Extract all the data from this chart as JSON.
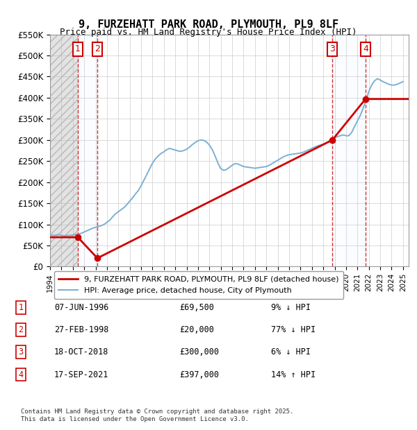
{
  "title": "9, FURZEHATT PARK ROAD, PLYMOUTH, PL9 8LF",
  "subtitle": "Price paid vs. HM Land Registry's House Price Index (HPI)",
  "xlabel": "",
  "ylabel": "",
  "ylim": [
    0,
    550000
  ],
  "xlim_start": 1994.0,
  "xlim_end": 2025.5,
  "yticks": [
    0,
    50000,
    100000,
    150000,
    200000,
    250000,
    300000,
    350000,
    400000,
    450000,
    500000,
    550000
  ],
  "ytick_labels": [
    "£0",
    "£50K",
    "£100K",
    "£150K",
    "£200K",
    "£250K",
    "£300K",
    "£350K",
    "£400K",
    "£450K",
    "£500K",
    "£550K"
  ],
  "transactions": [
    {
      "num": 1,
      "date": "07-JUN-1996",
      "year": 1996.44,
      "price": 69500,
      "pct": "9% ↓ HPI"
    },
    {
      "num": 2,
      "date": "27-FEB-1998",
      "year": 1998.16,
      "price": 20000,
      "pct": "77% ↓ HPI"
    },
    {
      "num": 3,
      "date": "18-OCT-2018",
      "year": 2018.8,
      "price": 300000,
      "pct": "6% ↓ HPI"
    },
    {
      "num": 4,
      "date": "17-SEP-2021",
      "year": 2021.71,
      "price": 397000,
      "pct": "14% ↑ HPI"
    }
  ],
  "legend_entries": [
    {
      "label": "9, FURZEHATT PARK ROAD, PLYMOUTH, PL9 8LF (detached house)",
      "color": "#cc0000",
      "lw": 2
    },
    {
      "label": "HPI: Average price, detached house, City of Plymouth",
      "color": "#6699cc",
      "lw": 1.5
    }
  ],
  "table_rows": [
    {
      "num": 1,
      "date": "07-JUN-1996",
      "price": "£69,500",
      "pct": "9% ↓ HPI"
    },
    {
      "num": 2,
      "date": "27-FEB-1998",
      "price": "£20,000",
      "pct": "77% ↓ HPI"
    },
    {
      "num": 3,
      "date": "18-OCT-2018",
      "price": "£300,000",
      "pct": "6% ↓ HPI"
    },
    {
      "num": 4,
      "date": "17-SEP-2021",
      "price": "£397,000",
      "pct": "14% ↑ HPI"
    }
  ],
  "footer": "Contains HM Land Registry data © Crown copyright and database right 2025.\nThis data is licensed under the Open Government Licence v3.0.",
  "hpi_data": {
    "years": [
      1994.0,
      1994.25,
      1994.5,
      1994.75,
      1995.0,
      1995.25,
      1995.5,
      1995.75,
      1996.0,
      1996.25,
      1996.5,
      1996.75,
      1997.0,
      1997.25,
      1997.5,
      1997.75,
      1998.0,
      1998.25,
      1998.5,
      1998.75,
      1999.0,
      1999.25,
      1999.5,
      1999.75,
      2000.0,
      2000.25,
      2000.5,
      2000.75,
      2001.0,
      2001.25,
      2001.5,
      2001.75,
      2002.0,
      2002.25,
      2002.5,
      2002.75,
      2003.0,
      2003.25,
      2003.5,
      2003.75,
      2004.0,
      2004.25,
      2004.5,
      2004.75,
      2005.0,
      2005.25,
      2005.5,
      2005.75,
      2006.0,
      2006.25,
      2006.5,
      2006.75,
      2007.0,
      2007.25,
      2007.5,
      2007.75,
      2008.0,
      2008.25,
      2008.5,
      2008.75,
      2009.0,
      2009.25,
      2009.5,
      2009.75,
      2010.0,
      2010.25,
      2010.5,
      2010.75,
      2011.0,
      2011.25,
      2011.5,
      2011.75,
      2012.0,
      2012.25,
      2012.5,
      2012.75,
      2013.0,
      2013.25,
      2013.5,
      2013.75,
      2014.0,
      2014.25,
      2014.5,
      2014.75,
      2015.0,
      2015.25,
      2015.5,
      2015.75,
      2016.0,
      2016.25,
      2016.5,
      2016.75,
      2017.0,
      2017.25,
      2017.5,
      2017.75,
      2018.0,
      2018.25,
      2018.5,
      2018.75,
      2019.0,
      2019.25,
      2019.5,
      2019.75,
      2020.0,
      2020.25,
      2020.5,
      2020.75,
      2021.0,
      2021.25,
      2021.5,
      2021.75,
      2022.0,
      2022.25,
      2022.5,
      2022.75,
      2023.0,
      2023.25,
      2023.5,
      2023.75,
      2024.0,
      2024.25,
      2024.5,
      2024.75,
      2025.0
    ],
    "values": [
      75000,
      74000,
      74500,
      76000,
      74000,
      73000,
      73500,
      74000,
      75000,
      76000,
      77000,
      79000,
      82000,
      85000,
      88000,
      91000,
      93000,
      95000,
      97000,
      100000,
      105000,
      110000,
      118000,
      125000,
      130000,
      135000,
      140000,
      147000,
      155000,
      163000,
      172000,
      180000,
      192000,
      205000,
      218000,
      232000,
      245000,
      255000,
      262000,
      268000,
      272000,
      277000,
      280000,
      278000,
      276000,
      274000,
      273000,
      275000,
      278000,
      283000,
      289000,
      294000,
      298000,
      300000,
      299000,
      295000,
      288000,
      277000,
      262000,
      245000,
      232000,
      228000,
      230000,
      235000,
      240000,
      244000,
      243000,
      240000,
      237000,
      236000,
      235000,
      234000,
      233000,
      234000,
      235000,
      236000,
      237000,
      240000,
      244000,
      248000,
      252000,
      256000,
      260000,
      263000,
      265000,
      266000,
      267000,
      268000,
      269000,
      271000,
      274000,
      277000,
      280000,
      283000,
      286000,
      288000,
      290000,
      293000,
      296000,
      299000,
      305000,
      308000,
      310000,
      312000,
      310000,
      310000,
      318000,
      332000,
      345000,
      358000,
      375000,
      393000,
      415000,
      430000,
      440000,
      445000,
      442000,
      438000,
      435000,
      432000,
      430000,
      430000,
      432000,
      435000,
      438000
    ]
  },
  "property_line": {
    "x": [
      1994.0,
      1996.44,
      1996.44,
      1998.16,
      1998.16,
      2018.8,
      2018.8,
      2021.71,
      2021.71,
      2025.5
    ],
    "y": [
      69500,
      69500,
      69500,
      20000,
      20000,
      300000,
      300000,
      397000,
      397000,
      397000
    ]
  },
  "bg_color": "#ffffff",
  "grid_color": "#cccccc",
  "hatch_color": "#aaaaaa",
  "transaction_box_color": "#cc0000",
  "vline_color": "#cc0000",
  "shade_color": "#ddeeff"
}
